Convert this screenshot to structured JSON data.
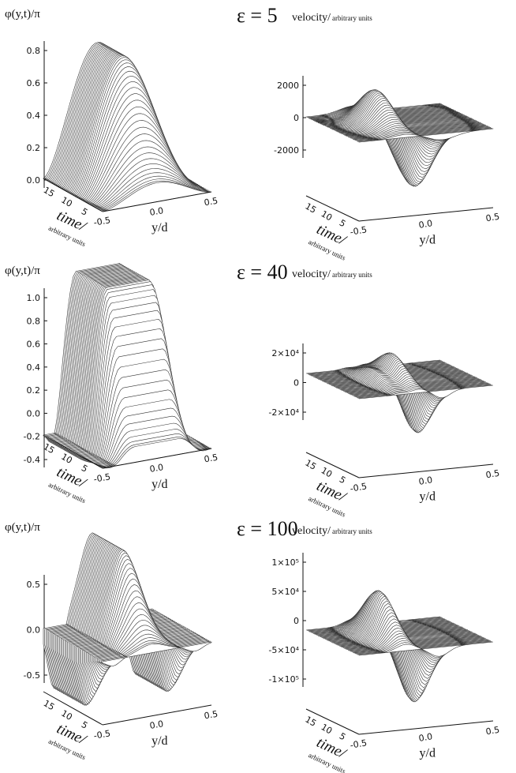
{
  "rows": [
    {
      "title": "ε = 5",
      "left": {
        "axis_label": "φ(y,t)/π",
        "z_ticks": [
          "0.8",
          "0.6",
          "0.4",
          "0.2",
          "0.0"
        ],
        "time_ticks": [
          "15",
          "10",
          "5"
        ],
        "time_label": "time/",
        "time_units": "arbitrary units",
        "y_ticks": [
          "-0.5",
          "0.0",
          "0.5"
        ],
        "y_label": "y/d"
      },
      "right": {
        "axis_label": "velocity/",
        "axis_units": "arbitrary units",
        "z_ticks": [
          "2000",
          "0",
          "-2000"
        ],
        "time_ticks": [
          "15",
          "10",
          "5"
        ],
        "time_label": "time/",
        "time_units": "arbitrary units",
        "y_ticks": [
          "-0.5",
          "0.0",
          "0.5"
        ],
        "y_label": "y/d"
      }
    },
    {
      "title": "ε = 40",
      "left": {
        "axis_label": "φ(y,t)/π",
        "z_ticks": [
          "1.0",
          "0.8",
          "0.6",
          "0.4",
          "0.2",
          "0.0",
          "-0.2",
          "-0.4"
        ],
        "time_ticks": [
          "15",
          "10",
          "5"
        ],
        "time_label": "time/",
        "time_units": "arbitrary units",
        "y_ticks": [
          "-0.5",
          "0.0",
          "0.5"
        ],
        "y_label": "y/d"
      },
      "right": {
        "axis_label": "velocity/",
        "axis_units": "arbitrary units",
        "z_ticks": [
          "2×10⁴",
          "0",
          "-2×10⁴"
        ],
        "time_ticks": [
          "15",
          "10",
          "5"
        ],
        "time_label": "time/",
        "time_units": "arbitrary units",
        "y_ticks": [
          "-0.5",
          "0.0",
          "0.5"
        ],
        "y_label": "y/d"
      }
    },
    {
      "title": "ε = 100",
      "left": {
        "axis_label": "φ(y,t)/π",
        "z_ticks": [
          "0.5",
          "0.0",
          "-0.5"
        ],
        "time_ticks": [
          "15",
          "10",
          "5"
        ],
        "time_label": "time/",
        "time_units": "arbitrary units",
        "y_ticks": [
          "-0.5",
          "0.0",
          "0.5"
        ],
        "y_label": "y/d"
      },
      "right": {
        "axis_label": "velocity/",
        "axis_units": "arbitrary units",
        "z_ticks": [
          "1×10⁵",
          "5×10⁴",
          "0",
          "-5×10⁴",
          "-1×10⁵"
        ],
        "time_ticks": [
          "15",
          "10",
          "5"
        ],
        "time_label": "time/",
        "time_units": "arbitrary units",
        "y_ticks": [
          "-0.5",
          "0.0",
          "0.5"
        ],
        "y_label": "y/d"
      }
    }
  ]
}
